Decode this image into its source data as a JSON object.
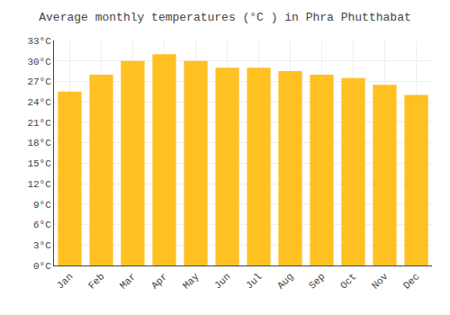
{
  "chart_data": {
    "type": "bar",
    "title": "Average monthly temperatures (°C ) in Phra Phutthabat",
    "categories": [
      "Jan",
      "Feb",
      "Mar",
      "Apr",
      "May",
      "Jun",
      "Jul",
      "Aug",
      "Sep",
      "Oct",
      "Nov",
      "Dec"
    ],
    "values": [
      25.5,
      28.0,
      30.0,
      31.0,
      30.0,
      29.0,
      29.0,
      28.5,
      28.0,
      27.5,
      26.5,
      25.0
    ],
    "color": "#FFC022",
    "ylim": [
      0,
      33
    ],
    "yticks": [
      {
        "value": 0,
        "label": "0°C"
      },
      {
        "value": 3,
        "label": "3°C"
      },
      {
        "value": 6,
        "label": "6°C"
      },
      {
        "value": 9,
        "label": "9°C"
      },
      {
        "value": 12,
        "label": "12°C"
      },
      {
        "value": 15,
        "label": "15°C"
      },
      {
        "value": 18,
        "label": "18°C"
      },
      {
        "value": 21,
        "label": "21°C"
      },
      {
        "value": 24,
        "label": "24°C"
      },
      {
        "value": 27,
        "label": "27°C"
      },
      {
        "value": 30,
        "label": "30°C"
      },
      {
        "value": 33,
        "label": "33°C"
      }
    ],
    "grid": true
  }
}
